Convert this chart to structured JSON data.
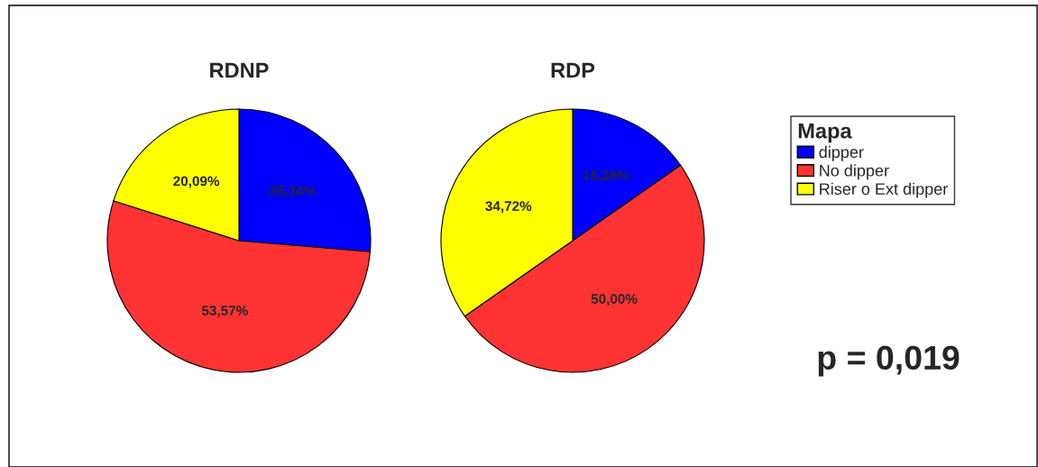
{
  "chart_data": [
    {
      "type": "pie",
      "title": "RDNP",
      "categories": [
        "dipper",
        "No dipper",
        "Riser o Ext dipper"
      ],
      "values": [
        26.34,
        53.57,
        20.09
      ],
      "colors": [
        "#0000ff",
        "#ff3333",
        "#ffff00"
      ],
      "value_labels": [
        "26,34%",
        "53,57%",
        "20,09%"
      ],
      "legend": "right",
      "legend_title": "Mapa"
    },
    {
      "type": "pie",
      "title": "RDP",
      "categories": [
        null,
        null,
        null
      ],
      "values": [
        15.28,
        50.0,
        34.72
      ],
      "colors": [
        "#0000ff",
        "#ff3333",
        "#ffff00"
      ],
      "value_labels": [
        "15,28%",
        "50,00%",
        "34,72%"
      ],
      "annotations": [
        "p = 0,019"
      ]
    }
  ]
}
